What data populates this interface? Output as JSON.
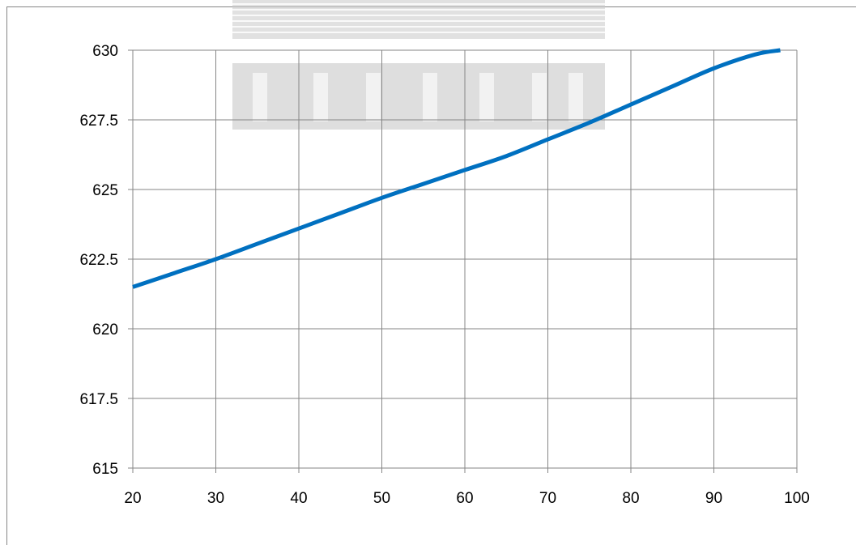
{
  "chart_data": {
    "type": "line",
    "title": "",
    "xlabel": "",
    "ylabel": "",
    "xlim": [
      20,
      100
    ],
    "ylim": [
      615,
      630
    ],
    "x_ticks": [
      20,
      30,
      40,
      50,
      60,
      70,
      80,
      90,
      100
    ],
    "x_tick_labels": [
      "20",
      "30",
      "40",
      "50",
      "60",
      "70",
      "80",
      "90",
      "100"
    ],
    "y_ticks": [
      615,
      617.5,
      620,
      622.5,
      625,
      627.5,
      630
    ],
    "y_tick_labels": [
      "615",
      "617.5",
      "620",
      "622.5",
      "625",
      "627.5",
      "630"
    ],
    "grid": true,
    "legend": "none",
    "series": [
      {
        "color": "#0070C0",
        "x": [
          20,
          25,
          30,
          35,
          40,
          45,
          50,
          55,
          60,
          65,
          70,
          75,
          80,
          85,
          90,
          95,
          98
        ],
        "values": [
          621.5,
          622.0,
          622.5,
          623.05,
          623.6,
          624.15,
          624.7,
          625.2,
          625.7,
          626.2,
          626.8,
          627.4,
          628.05,
          628.7,
          629.35,
          629.85,
          630.0
        ]
      }
    ]
  }
}
